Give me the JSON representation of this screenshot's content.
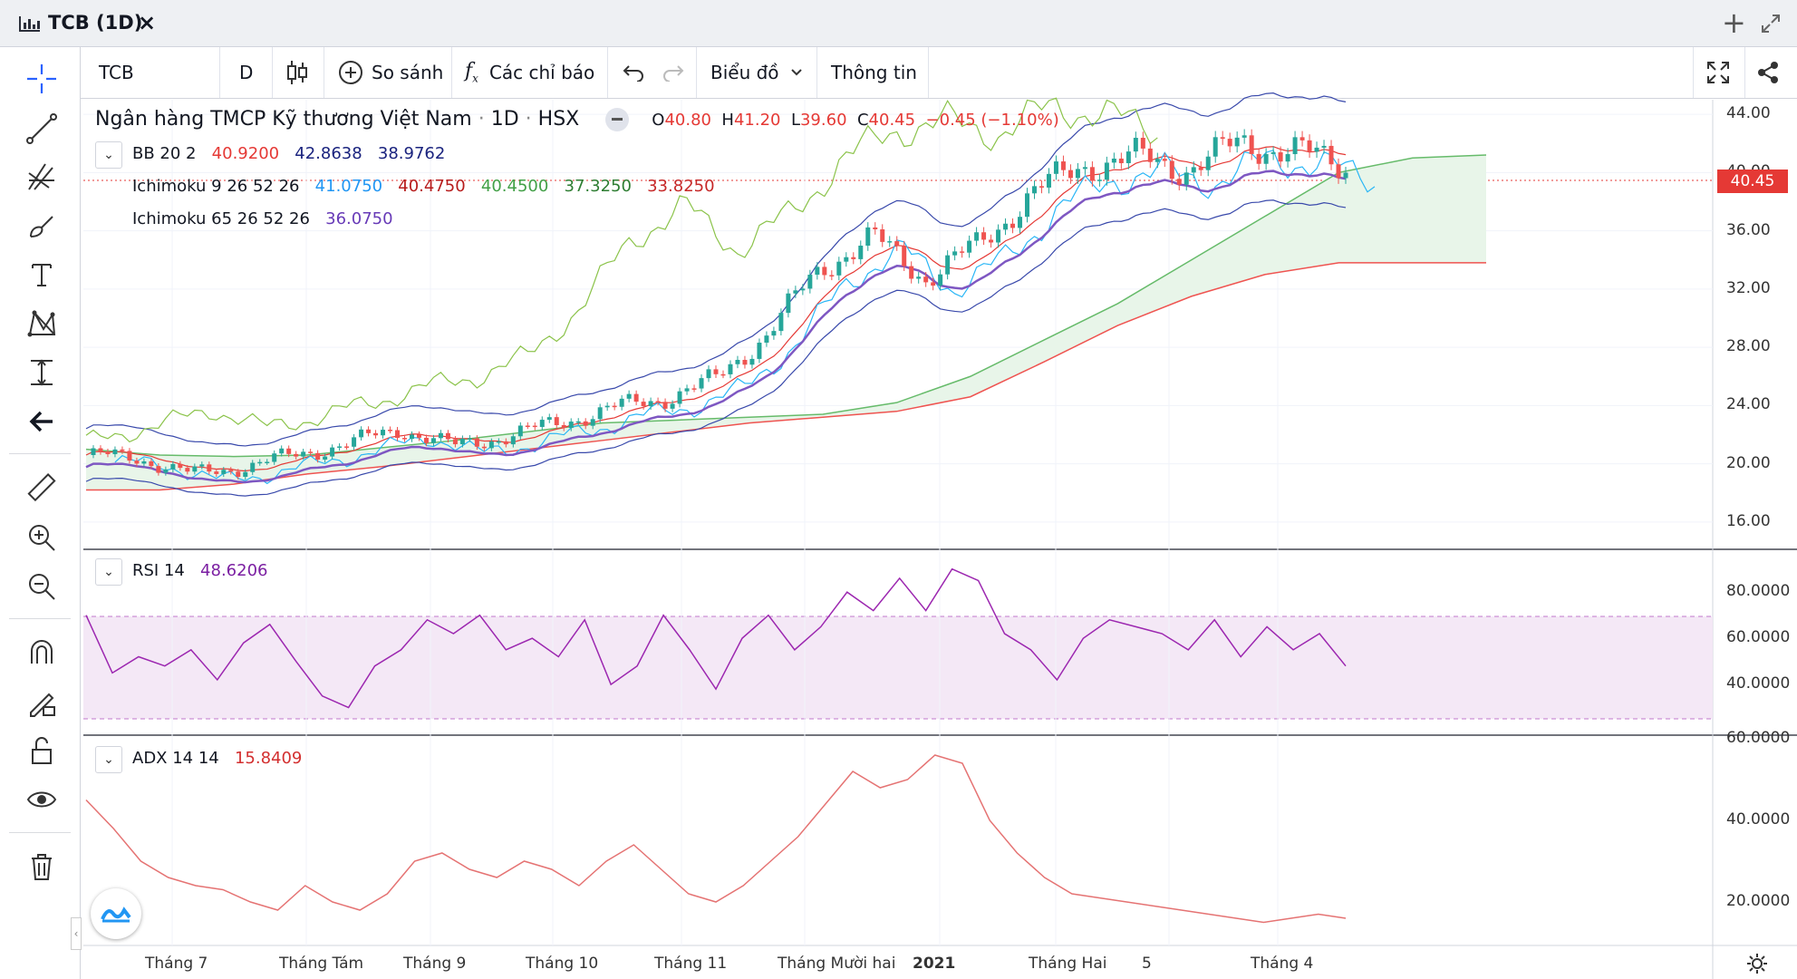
{
  "window": {
    "title": "TCB (1D)",
    "close_icon": "×",
    "add_icon": "+"
  },
  "toolbar": {
    "symbol": "TCB",
    "interval": "D",
    "compare_label": "So sánh",
    "indicators_label": "Các chỉ báo",
    "chart_type_label": "Biểu đồ",
    "info_label": "Thông tin"
  },
  "legend": {
    "company": "Ngân hàng TMCP Kỹ thương Việt Nam",
    "interval": "1D",
    "exchange": "HSX",
    "open_label": "O",
    "open": "40.80",
    "high_label": "H",
    "high": "41.20",
    "low_label": "L",
    "low": "39.60",
    "close_label": "C",
    "close": "40.45",
    "change": "−0.45 (−1.10%)"
  },
  "indicators": {
    "bb": {
      "name": "BB 20 2",
      "v1": "40.9200",
      "v2": "42.8638",
      "v3": "38.9762"
    },
    "ichi1": {
      "name": "Ichimoku 9 26 52 26",
      "v1": "41.0750",
      "v2": "40.4750",
      "v3": "40.4500",
      "v4": "37.3250",
      "v5": "33.8250"
    },
    "ichi2": {
      "name": "Ichimoku 65 26 52 26",
      "v1": "36.0750"
    },
    "rsi": {
      "name": "RSI 14",
      "value": "48.6206"
    },
    "adx": {
      "name": "ADX 14 14",
      "value": "15.8409"
    }
  },
  "price_axis": [
    "44.00",
    "40.00",
    "36.00",
    "32.00",
    "28.00",
    "24.00",
    "20.00",
    "16.00"
  ],
  "current_price": "40.45",
  "rsi_axis": [
    "80.0000",
    "60.0000",
    "40.0000"
  ],
  "adx_axis": [
    "60.0000",
    "40.0000",
    "20.0000"
  ],
  "time_axis": [
    "Tháng 7",
    "Tháng Tám",
    "Tháng 9",
    "Tháng 10",
    "Tháng 11",
    "Tháng Mười hai",
    "2021",
    "Tháng Hai",
    "5",
    "Tháng 4"
  ],
  "colors": {
    "up": "#26a69a",
    "down": "#ef5350",
    "accent": "#2962ff",
    "rsi": "#9c27b0",
    "adx": "#e57373"
  },
  "chart_data": [
    {
      "type": "candlestick",
      "title": "Ngân hàng TMCP Kỹ thương Việt Nam · 1D · HSX",
      "ylim": [
        14.5,
        45
      ],
      "x": [
        "Tháng 7",
        "Tháng Tám",
        "Tháng 9",
        "Tháng 10",
        "Tháng 11",
        "Tháng Mười hai",
        "2021",
        "Tháng Hai",
        "5",
        "Tháng 4"
      ],
      "close_points": [
        20.6,
        20.4,
        19.3,
        19.8,
        20.6,
        21.4,
        22.4,
        21.2,
        21.9,
        22.8,
        23.8,
        24.5,
        25.8,
        29.0,
        33.5,
        35.5,
        32.8,
        35.0,
        38.5,
        40.5,
        41.0,
        40.3,
        42.0,
        41.5,
        40.45
      ],
      "ichimoku_cloud_top": [
        21.0,
        20.6,
        20.5,
        20.6,
        21.1,
        21.6,
        22.2,
        22.8,
        23.0,
        23.2,
        23.4,
        24.2,
        26.0,
        28.5,
        31.0,
        34.0,
        37.0,
        40.0,
        41.0,
        41.2
      ],
      "ichimoku_cloud_bottom": [
        18.2,
        18.2,
        18.6,
        19.3,
        19.8,
        20.4,
        21.0,
        21.6,
        22.2,
        22.8,
        23.2,
        23.6,
        24.6,
        27.0,
        29.5,
        31.5,
        33.0,
        33.8,
        33.8,
        33.8
      ]
    },
    {
      "type": "line",
      "title": "RSI 14",
      "ylim": [
        20,
        95
      ],
      "values": [
        70,
        45,
        52,
        48,
        55,
        42,
        58,
        66,
        50,
        35,
        30,
        48,
        55,
        68,
        62,
        70,
        55,
        60,
        52,
        68,
        40,
        48,
        70,
        55,
        38,
        60,
        70,
        55,
        65,
        80,
        72,
        86,
        72,
        90,
        85,
        62,
        55,
        42,
        60,
        68,
        65,
        62,
        55,
        68,
        52,
        65,
        55,
        62,
        48
      ]
    },
    {
      "type": "line",
      "title": "ADX 14 14",
      "ylim": [
        10,
        60
      ],
      "values": [
        45,
        38,
        30,
        26,
        24,
        23,
        20,
        18,
        24,
        20,
        18,
        22,
        30,
        32,
        28,
        26,
        30,
        28,
        24,
        30,
        34,
        28,
        22,
        20,
        24,
        30,
        36,
        44,
        52,
        48,
        50,
        56,
        54,
        40,
        32,
        26,
        22,
        21,
        20,
        19,
        18,
        17,
        16,
        15,
        16,
        17,
        16
      ]
    }
  ]
}
